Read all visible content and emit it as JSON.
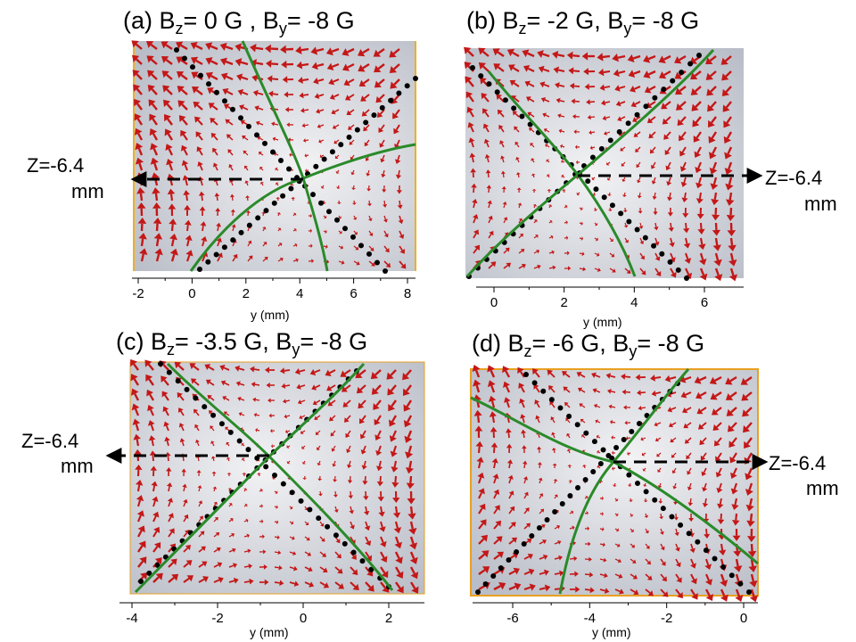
{
  "panels": [
    {
      "id": "a",
      "title": {
        "prefix": "(a) B",
        "sub1": "z",
        "mid": "= 0 G , B",
        "sub2": "y",
        "suffix": "= -8 G"
      },
      "x_ticks": [
        "-2",
        "0",
        "2",
        "4",
        "6",
        "8"
      ],
      "x_label": "y (mm)",
      "z_label": [
        "Z=-6.4",
        "mm"
      ],
      "z_side": "left"
    },
    {
      "id": "b",
      "title": {
        "prefix": "(b) B",
        "sub1": "z",
        "mid": "= -2 G, B",
        "sub2": "y",
        "suffix": "= -8 G"
      },
      "x_ticks": [
        "0",
        "2",
        "4",
        "6"
      ],
      "x_label": "y (mm)",
      "z_label": [
        "Z=-6.4",
        "mm"
      ],
      "z_side": "right"
    },
    {
      "id": "c",
      "title": {
        "prefix": "(c) B",
        "sub1": "z",
        "mid": "= -3.5 G, B",
        "sub2": "y",
        "suffix": "= -8 G"
      },
      "x_ticks": [
        "-4",
        "-2",
        "0",
        "2"
      ],
      "x_label": "y (mm)",
      "z_label": [
        "Z=-6.4",
        "mm"
      ],
      "z_side": "left"
    },
    {
      "id": "d",
      "title": {
        "prefix": "(d) B",
        "sub1": "z",
        "mid": "= -6 G, B",
        "sub2": "y",
        "suffix": "= -8 G"
      },
      "x_ticks": [
        "-6",
        "-4",
        "-2",
        "0"
      ],
      "x_label": "y (mm)",
      "z_label": [
        "Z=-6.4",
        "mm"
      ],
      "z_side": "right"
    }
  ],
  "colors": {
    "arrow": "#c41717",
    "separatrix": "#2a8a2a",
    "dotted_line": "#000000",
    "frame_a": "#f0b020",
    "frame_d": "#e8a020",
    "background_light": "#f2f2f4",
    "background_dark": "#b8bcc6"
  }
}
